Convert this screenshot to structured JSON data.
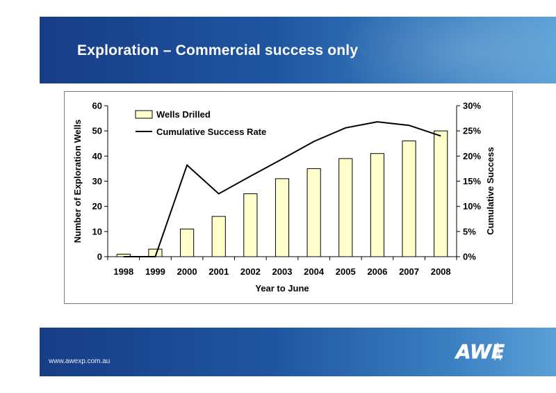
{
  "slide": {
    "title": "Exploration – Commercial success only",
    "footer_url": "www.awexp.com.au",
    "logo_text": "AWE",
    "accent_color": "#1f55a0"
  },
  "chart_data": {
    "type": "bar",
    "categories": [
      "1998",
      "1999",
      "2000",
      "2001",
      "2002",
      "2003",
      "2004",
      "2005",
      "2006",
      "2007",
      "2008"
    ],
    "series": [
      {
        "name": "Wells Drilled",
        "type": "bar",
        "axis": "left",
        "values": [
          1,
          3,
          11,
          16,
          25,
          31,
          35,
          39,
          41,
          46,
          50
        ],
        "color": "#ffffcc"
      },
      {
        "name": "Cumulative Success Rate",
        "type": "line",
        "axis": "right",
        "values": [
          0.0,
          0.0,
          18.2,
          12.5,
          16.0,
          19.4,
          22.9,
          25.6,
          26.8,
          26.1,
          24.0
        ],
        "color": "#000000"
      }
    ],
    "xlabel": "Year to June",
    "ylabel": "Number of Exploration Wells",
    "y2label": "Cumulative Success",
    "ylim": [
      0,
      60
    ],
    "yticks": [
      "0",
      "10",
      "20",
      "30",
      "40",
      "50",
      "60"
    ],
    "y2lim": [
      0,
      30
    ],
    "y2ticks": [
      "0%",
      "5%",
      "10%",
      "15%",
      "20%",
      "25%",
      "30%"
    ],
    "grid": false,
    "legend": "top-left"
  }
}
